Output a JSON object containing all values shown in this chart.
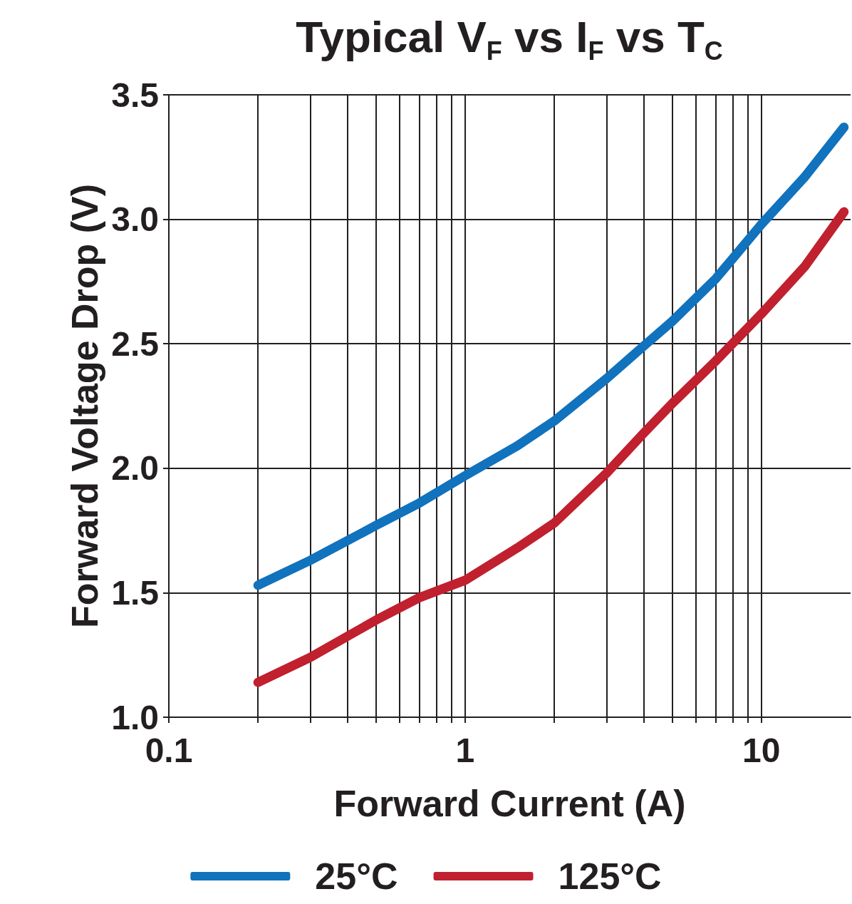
{
  "chart_data": {
    "type": "line",
    "title": "Typical V$_{F}$ vs I$_{F}$ vs T$_{C}$",
    "xlabel": "Forward Current (A)",
    "ylabel": "Forward Voltage Drop (V)",
    "log": "x",
    "grid": true,
    "legend": "bottom",
    "line_style": "solid",
    "xlim": [
      0.1,
      20
    ],
    "xticks": [
      {
        "value": 0.1,
        "label": "0.1"
      },
      {
        "value": 0.2,
        "label": null
      },
      {
        "value": 0.3,
        "label": null
      },
      {
        "value": 0.4,
        "label": null
      },
      {
        "value": 0.5,
        "label": null
      },
      {
        "value": 0.6,
        "label": null
      },
      {
        "value": 0.7,
        "label": null
      },
      {
        "value": 0.8,
        "label": null
      },
      {
        "value": 0.9,
        "label": null
      },
      1,
      {
        "value": 2,
        "label": null
      },
      {
        "value": 3,
        "label": null
      },
      {
        "value": 4,
        "label": null
      },
      {
        "value": 5,
        "label": null
      },
      {
        "value": 6,
        "label": null
      },
      {
        "value": 7,
        "label": null
      },
      {
        "value": 8,
        "label": null
      },
      {
        "value": 9,
        "label": null
      },
      10
    ],
    "ylim": [
      1.0,
      3.5
    ],
    "yticks": [
      {
        "value": 1,
        "label": "1.0"
      },
      1.5,
      {
        "value": 2,
        "label": "2.0"
      },
      2.5,
      {
        "value": 3,
        "label": "3.0"
      },
      3.5
    ],
    "series": [
      {
        "name": "25°C",
        "color": "#1172bd",
        "x": [
          0.2,
          0.3,
          0.5,
          0.7,
          1,
          1.5,
          2,
          3,
          4,
          5,
          7,
          10,
          14,
          19
        ],
        "values": [
          1.53,
          1.63,
          1.77,
          1.86,
          1.97,
          2.09,
          2.19,
          2.36,
          2.49,
          2.59,
          2.76,
          2.98,
          3.17,
          3.37
        ]
      },
      {
        "name": "125°C",
        "color": "#c1202f",
        "x": [
          0.2,
          0.3,
          0.5,
          0.7,
          1,
          1.5,
          2,
          3,
          4,
          5,
          7,
          10,
          14,
          19
        ],
        "values": [
          1.14,
          1.24,
          1.39,
          1.48,
          1.55,
          1.68,
          1.78,
          1.98,
          2.14,
          2.26,
          2.43,
          2.62,
          2.81,
          3.03
        ]
      }
    ]
  }
}
